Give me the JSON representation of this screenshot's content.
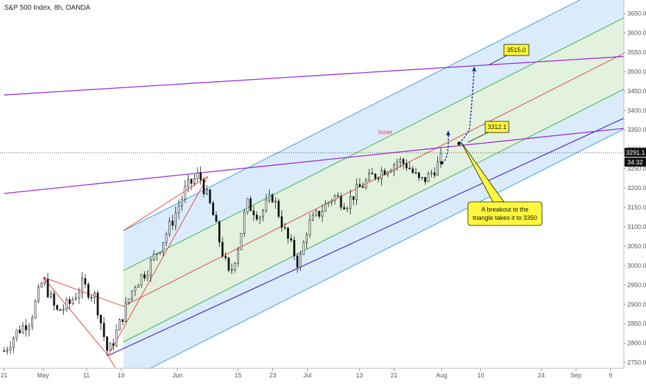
{
  "header": {
    "title": "S&P 500 Index, 8h, OANDA"
  },
  "chart_data": {
    "type": "candlestick",
    "title": "S&P 500 Index, 8h, OANDA",
    "ylim": [
      2735,
      3685
    ],
    "y_ticks": [
      2750,
      2800,
      2850,
      2900,
      2950,
      3000,
      3050,
      3100,
      3150,
      3200,
      3250,
      3300,
      3350,
      3400,
      3450,
      3500,
      3550,
      3600,
      3650
    ],
    "y_tick_labels": [
      "2750.0",
      "2800.0",
      "2850.0",
      "2900.0",
      "2950.0",
      "3000.0",
      "3050.0",
      "3100.0",
      "3150.0",
      "3200.0",
      "3250.0",
      "3300.0",
      "3350.0",
      "3400.0",
      "3450.0",
      "3500.0",
      "3550.0",
      "3600.0",
      "3650.0"
    ],
    "x_ticks": [
      {
        "label": "21",
        "day": 0
      },
      {
        "label": "May",
        "day": 9
      },
      {
        "label": "11",
        "day": 19
      },
      {
        "label": "19",
        "day": 27
      },
      {
        "label": "Jun",
        "day": 40
      },
      {
        "label": "15",
        "day": 54
      },
      {
        "label": "23",
        "day": 62
      },
      {
        "label": "Jul",
        "day": 70
      },
      {
        "label": "13",
        "day": 82
      },
      {
        "label": "21",
        "day": 90
      },
      {
        "label": "Aug",
        "day": 101
      },
      {
        "label": "10",
        "day": 110
      },
      {
        "label": "24",
        "day": 124
      },
      {
        "label": "Sep",
        "day": 132
      },
      {
        "label": "9",
        "day": 140
      }
    ],
    "x_range_days": [
      0,
      144
    ],
    "price_path": [
      [
        0,
        2780
      ],
      [
        3,
        2830
      ],
      [
        6,
        2860
      ],
      [
        9,
        2965
      ],
      [
        12,
        2880
      ],
      [
        15,
        2900
      ],
      [
        18,
        2950
      ],
      [
        21,
        2920
      ],
      [
        24,
        2770
      ],
      [
        27,
        2860
      ],
      [
        30,
        2950
      ],
      [
        33,
        2990
      ],
      [
        36,
        3050
      ],
      [
        39,
        3120
      ],
      [
        42,
        3200
      ],
      [
        45,
        3235
      ],
      [
        48,
        3140
      ],
      [
        50,
        3050
      ],
      [
        52,
        2970
      ],
      [
        54,
        3050
      ],
      [
        56,
        3160
      ],
      [
        59,
        3130
      ],
      [
        62,
        3180
      ],
      [
        65,
        3080
      ],
      [
        67,
        3030
      ],
      [
        68,
        3000
      ],
      [
        70,
        3100
      ],
      [
        73,
        3140
      ],
      [
        76,
        3180
      ],
      [
        79,
        3160
      ],
      [
        82,
        3200
      ],
      [
        85,
        3230
      ],
      [
        88,
        3250
      ],
      [
        91,
        3270
      ],
      [
        93,
        3260
      ],
      [
        96,
        3215
      ],
      [
        98,
        3230
      ],
      [
        101,
        3275
      ]
    ],
    "last_price": "3291.1",
    "countdown": "34:32",
    "current_price": 3291.1,
    "channel": {
      "type": "pitchfork",
      "center_start": [
        27.5,
        2895
      ],
      "center_end": [
        140,
        3530
      ],
      "outer_offset": 195,
      "inner_offset": 92
    },
    "trendlines": [
      {
        "name": "upper-purple",
        "start": [
          0,
          3440
        ],
        "end": [
          144,
          3540
        ]
      },
      {
        "name": "middle-purple",
        "start": [
          0,
          3186
        ],
        "end": [
          144,
          3355
        ]
      },
      {
        "name": "lower-purple",
        "start": [
          24,
          2768
        ],
        "end": [
          144,
          3385
        ]
      }
    ],
    "zigzag": [
      [
        9,
        2970
      ],
      [
        24,
        2768
      ],
      [
        47,
        3230
      ]
    ],
    "projection": [
      [
        101,
        3265
      ],
      [
        102.5,
        3345
      ]
    ],
    "projection2": [
      [
        105,
        3315
      ],
      [
        107,
        3350
      ],
      [
        108.5,
        3510
      ]
    ],
    "annotations": [
      {
        "text": "3515.0",
        "value": 3515
      },
      {
        "text": "3312.1",
        "value": 3312.1
      },
      {
        "text": "A breakout to the triangle takes it to 3350"
      }
    ],
    "labels": {
      "inner": "Inner"
    }
  },
  "colors": {
    "channel_blue_fill": "#d6eafc",
    "channel_green_fill": "#dff1da",
    "channel_blue_line": "#3d9ce0",
    "channel_green_line": "#3fae49",
    "median_red": "#e0473c",
    "purple": "#9c27d6",
    "dark_purple": "#5b2fc9",
    "candle": "#111111",
    "callout_yellow": "#fff83e",
    "projection_blue": "#1b1fa8"
  }
}
